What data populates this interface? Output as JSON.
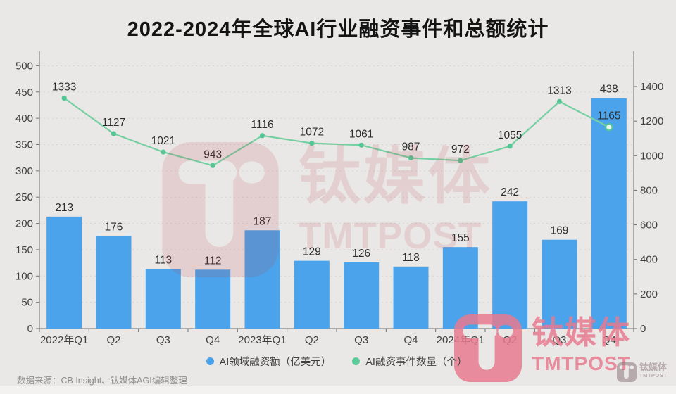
{
  "title": "2022-2024年全球AI行业融资事件和总额统计",
  "source_note": "数据来源：CB Insight、钛媒体AGI编辑整理",
  "watermark": {
    "brand_cn": "钛媒体",
    "brand_en": "TMTPOST"
  },
  "colors": {
    "background": "#e9e8e6",
    "card_edge": "#f3f2f0",
    "title": "#141414",
    "bar": "#4aa3eb",
    "line": "#76d0a3",
    "marker": "#55c593",
    "marker_open_fill": "#e9f6ef",
    "axis": "#6e6e6e",
    "grid": "#d6d4d1",
    "tick_label": "#3f3f3f",
    "value_label": "#2e2e2e",
    "legend_text": "#3f3f3f",
    "legend_dot_line": "#5fcb9b",
    "source": "#8d8d8d",
    "watermark_center": "rgba(193,58,74,0.14)",
    "watermark_bottom_right": "rgba(231,122,143,0.85)",
    "watermark_tiny": "rgba(150,128,132,0.6)"
  },
  "legend": [
    {
      "label": "AI领域融资额（亿美元）"
    },
    {
      "label": "AI融资事件数量（个）"
    }
  ],
  "chart_data": {
    "type": "bar",
    "subtype": "bar+line dual-axis",
    "title": "2022-2024年全球AI行业融资事件和总额统计",
    "categories": [
      "2022年Q1",
      "Q2",
      "Q3",
      "Q4",
      "2023年Q1",
      "Q2",
      "Q3",
      "Q4",
      "2024年Q1",
      "Q2",
      "Q3",
      "Q4"
    ],
    "series": [
      {
        "name": "AI领域融资额（亿美元）",
        "type": "bar",
        "axis": "left",
        "values": [
          213,
          176,
          113,
          112,
          187,
          129,
          126,
          118,
          155,
          242,
          169,
          438
        ]
      },
      {
        "name": "AI融资事件数量（个）",
        "type": "line",
        "axis": "right",
        "values": [
          1333,
          1127,
          1021,
          943,
          1116,
          1072,
          1061,
          987,
          972,
          1055,
          1313,
          1165
        ]
      }
    ],
    "left_axis": {
      "min": 0,
      "max": 500,
      "step": 50,
      "ticks": [
        0,
        50,
        100,
        150,
        200,
        250,
        300,
        350,
        400,
        450,
        500
      ]
    },
    "right_axis": {
      "min": 0,
      "max": 1400,
      "step": 200,
      "ticks": [
        0,
        200,
        400,
        600,
        800,
        1000,
        1200,
        1400
      ]
    },
    "grid": "horizontal dashed",
    "legend_position": "bottom",
    "data_labels": true
  }
}
